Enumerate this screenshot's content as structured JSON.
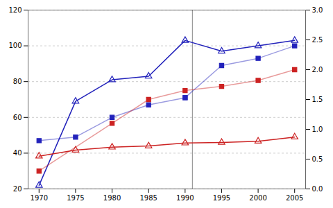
{
  "chart_data": {
    "type": "line",
    "xlim": [
      1968.5,
      2006.5
    ],
    "xticks": [
      1970,
      1975,
      1980,
      1985,
      1990,
      1995,
      2000,
      2005
    ],
    "ylim": [
      20,
      120
    ],
    "yticks": [
      20,
      40,
      60,
      80,
      100,
      120
    ],
    "y2lim": [
      0,
      3
    ],
    "y2ticks": [
      {
        "value": 0,
        "label": "0.0"
      },
      0.5,
      {
        "value": 1.0,
        "label": "1.0"
      },
      1.5,
      {
        "value": 2.0,
        "label": "2.0"
      },
      2.5,
      {
        "value": 3.0,
        "label": "3.0"
      }
    ],
    "grid": true,
    "vline": {
      "x": 1991,
      "color": "#888888"
    },
    "series": [
      {
        "x": [
          1970,
          1975,
          1980,
          1985,
          1990,
          1995,
          2000,
          2005
        ],
        "values": [
          22,
          69,
          81,
          83,
          103,
          97,
          100,
          103
        ],
        "color": "#2222bb",
        "marker": "triangle"
      },
      {
        "x": [
          1970,
          1975,
          1980,
          1985,
          1990
        ],
        "values": [
          47,
          49,
          60,
          67,
          71
        ],
        "color": "#2222bb",
        "marker": "square"
      },
      {
        "x": [
          1990,
          1995,
          2000,
          2005
        ],
        "values": [
          71,
          89,
          93,
          100
        ],
        "color": "#2222bb",
        "marker": "square"
      },
      {
        "x": [
          1970,
          1975,
          1980,
          1985,
          1990,
          1995,
          2000,
          2005
        ],
        "values": [
          0.55,
          0.65,
          0.7,
          0.72,
          0.77,
          0.78,
          0.8,
          0.87
        ],
        "color": "#cc2222",
        "marker": "triangle",
        "axis": "y2"
      },
      {
        "x": [
          1970,
          1980,
          1985,
          1990,
          1995,
          2000,
          2005
        ],
        "values": [
          0.3,
          1.1,
          1.5,
          1.65,
          1.72,
          1.82,
          2.0
        ],
        "color": "#cc2222",
        "marker": "square",
        "axis": "y2"
      }
    ]
  }
}
